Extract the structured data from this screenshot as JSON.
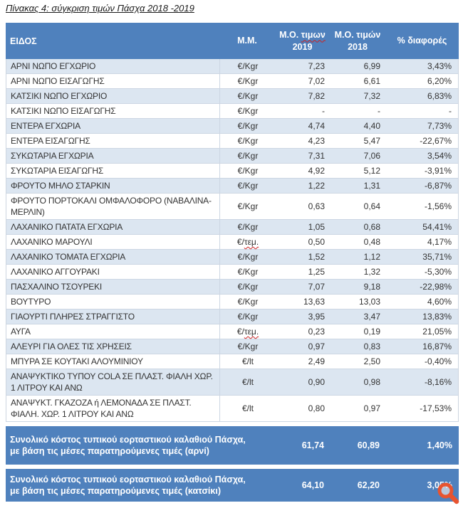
{
  "title": "Πίνακας 4: σύγκριση τιμών Πάσχα 2018 -2019",
  "colors": {
    "header_bg": "#4F81BD",
    "shaded_row": "#DCE6F1",
    "summary_bg": "#4F81BD",
    "header_text": "#FFFFFF",
    "body_text": "#333333",
    "spellcheck_red": "#CC2222",
    "watermark_orange": "#E85430"
  },
  "table": {
    "header": {
      "item": "ΕΙΔΟΣ",
      "unit": "Μ.Μ.",
      "y2019_prefix": "Μ.Ο.",
      "y2019_word": "τιμων",
      "y2019_year": "2019",
      "y2018_line1": "Μ.Ο. τιμών",
      "y2018_year": "2018",
      "diff": "% διαφορές"
    },
    "rows": [
      {
        "item": "ΑΡΝΙ ΝΩΠΟ ΕΓΧΩΡΙΟ",
        "unit": "€/Kgr",
        "p2019": "7,23",
        "p2018": "6,99",
        "diff": "3,43%",
        "shaded": true
      },
      {
        "item": "ΑΡΝΙ ΝΩΠΟ ΕΙΣΑΓΩΓΗΣ",
        "unit": "€/Kgr",
        "p2019": "7,02",
        "p2018": "6,61",
        "diff": "6,20%",
        "shaded": false
      },
      {
        "item": "ΚΑΤΣΙΚΙ ΝΩΠΟ ΕΓΧΩΡΙΟ",
        "unit": "€/Kgr",
        "p2019": "7,82",
        "p2018": "7,32",
        "diff": "6,83%",
        "shaded": true
      },
      {
        "item": "ΚΑΤΣΙΚΙ ΝΩΠΟ ΕΙΣΑΓΩΓΗΣ",
        "unit": "€/Kgr",
        "p2019": "-",
        "p2018": "-",
        "diff": "-",
        "shaded": false
      },
      {
        "item": "ΕΝΤΕΡΑ ΕΓΧΩΡΙΑ",
        "unit": "€/Kgr",
        "p2019": "4,74",
        "p2018": "4,40",
        "diff": "7,73%",
        "shaded": true
      },
      {
        "item": "ΕΝΤΕΡΑ ΕΙΣΑΓΩΓΗΣ",
        "unit": "€/Kgr",
        "p2019": "4,23",
        "p2018": "5,47",
        "diff": "-22,67%",
        "shaded": false
      },
      {
        "item": "ΣΥΚΩΤΑΡΙΑ ΕΓΧΩΡΙΑ",
        "unit": "€/Kgr",
        "p2019": "7,31",
        "p2018": "7,06",
        "diff": "3,54%",
        "shaded": true
      },
      {
        "item": "ΣΥΚΩΤΑΡΙΑ ΕΙΣΑΓΩΓΗΣ",
        "unit": "€/Kgr",
        "p2019": "4,92",
        "p2018": "5,12",
        "diff": "-3,91%",
        "shaded": false
      },
      {
        "item": "ΦΡΟΥΤΟ ΜΗΛΟ ΣΤΑΡΚΙΝ",
        "unit": "€/Kgr",
        "p2019": "1,22",
        "p2018": "1,31",
        "diff": "-6,87%",
        "shaded": true
      },
      {
        "item": "ΦΡΟΥΤΟ ΠΟΡΤΟΚΑΛΙ ΟΜΦΑΛΟΦΟΡΟ (ΝΑΒΑΛΙΝΑ-ΜΕΡΛΙΝ)",
        "unit": "€/Kgr",
        "p2019": "0,63",
        "p2018": "0,64",
        "diff": "-1,56%",
        "shaded": false
      },
      {
        "item": "ΛΑΧΑΝΙΚΟ ΠΑΤΑΤΑ ΕΓΧΩΡΙΑ",
        "unit": "€/Kgr",
        "p2019": "1,05",
        "p2018": "0,68",
        "diff": "54,41%",
        "shaded": true
      },
      {
        "item": "ΛΑΧΑΝΙΚΟ ΜΑΡΟΥΛΙ",
        "unit": "€/τεμ.",
        "p2019": "0,50",
        "p2018": "0,48",
        "diff": "4,17%",
        "shaded": false,
        "unit_spellcheck": true
      },
      {
        "item": "ΛΑΧΑΝΙΚΟ ΤΟΜΑΤΑ ΕΓΧΩΡΙΑ",
        "unit": "€/Kgr",
        "p2019": "1,52",
        "p2018": "1,12",
        "diff": "35,71%",
        "shaded": true
      },
      {
        "item": "ΛΑΧΑΝΙΚΟ ΑΓΓΟΥΡΑΚΙ",
        "unit": "€/Kgr",
        "p2019": "1,25",
        "p2018": "1,32",
        "diff": "-5,30%",
        "shaded": false
      },
      {
        "item": "ΠΑΣΧΑΛΙΝΟ ΤΣΟΥΡΕΚΙ",
        "unit": "€/Kgr",
        "p2019": "7,07",
        "p2018": "9,18",
        "diff": "-22,98%",
        "shaded": true
      },
      {
        "item": "ΒΟΥΤΥΡΟ",
        "unit": "€/Kgr",
        "p2019": "13,63",
        "p2018": "13,03",
        "diff": "4,60%",
        "shaded": false
      },
      {
        "item": "ΓΙΑΟΥΡΤΙ ΠΛΗΡΕΣ ΣΤΡΑΓΓΙΣΤΟ",
        "unit": "€/Kgr",
        "p2019": "3,95",
        "p2018": "3,47",
        "diff": "13,83%",
        "shaded": true
      },
      {
        "item": "ΑΥΓΑ",
        "unit": "€/τεμ.",
        "p2019": "0,23",
        "p2018": "0,19",
        "diff": "21,05%",
        "shaded": false,
        "unit_spellcheck": true
      },
      {
        "item": "ΑΛΕΥΡΙ ΓΙΑ ΟΛΕΣ ΤΙΣ ΧΡΗΣΕΙΣ",
        "unit": "€/Kgr",
        "p2019": "0,97",
        "p2018": "0,83",
        "diff": "16,87%",
        "shaded": true
      },
      {
        "item": "ΜΠΥΡΑ ΣΕ ΚΟΥΤΑΚΙ ΑΛΟΥΜΙΝΙΟΥ",
        "unit": "€/lt",
        "p2019": "2,49",
        "p2018": "2,50",
        "diff": "-0,40%",
        "shaded": false
      },
      {
        "item": "ΑΝΑΨΥΚΤΙΚΟ ΤΥΠΟΥ COLA ΣΕ ΠΛΑΣΤ. ΦΙΑΛΗ ΧΩΡ. 1 ΛΙΤΡΟΥ ΚΑΙ ΑΝΩ",
        "unit": "€/lt",
        "p2019": "0,90",
        "p2018": "0,98",
        "diff": "-8,16%",
        "shaded": true
      },
      {
        "item": "ΑΝΑΨΥΚΤ. ΓΚΑΖΟΖΑ ή ΛΕΜΟΝΑΔΑ ΣΕ ΠΛΑΣΤ. ΦΙΑΛΗ. ΧΩΡ. 1 ΛΙΤΡΟΥ ΚΑΙ ΑΝΩ",
        "unit": "€/lt",
        "p2019": "0,80",
        "p2018": "0,97",
        "diff": "-17,53%",
        "shaded": false
      }
    ],
    "summary": [
      {
        "label": "Συνολικό κόστος τυπικού εορταστικού καλαθιού Πάσχα, με βάση τις μέσες παρατηρούμενες τιμές (αρνί)",
        "p2019": "61,74",
        "p2018": "60,89",
        "diff": "1,40%"
      },
      {
        "label": "Συνολικό κόστος τυπικού εορταστικού καλαθιού Πάσχα, με βάση τις μέσες παρατηρούμενες τιμές (κατσίκι)",
        "p2019": "64,10",
        "p2018": "62,20",
        "diff": "3,05%"
      }
    ]
  },
  "watermark": {
    "icon": "magnifier-icon"
  }
}
